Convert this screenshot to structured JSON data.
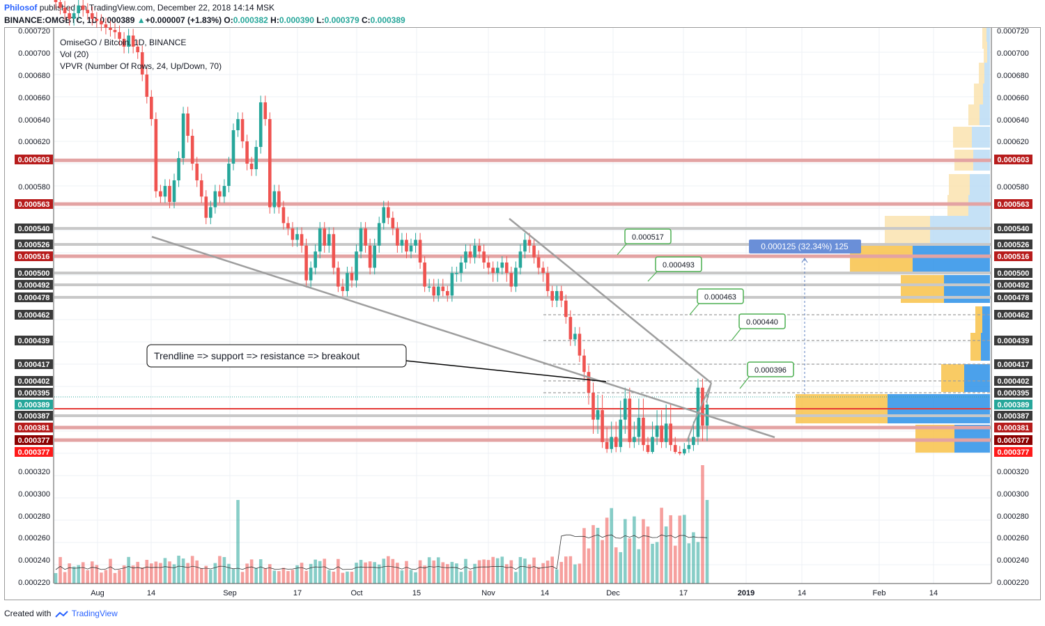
{
  "header": {
    "author": "Philosof",
    "published_text": "published on TradingView.com, December 22, 2018 14:14 MSK",
    "symbol": "BINANCE:OMGBTC, 1D",
    "last_price": "0.000389",
    "change": "+0.000007 (+1.83%)",
    "o_label": "O:",
    "o_value": "0.000382",
    "h_label": "H:",
    "h_value": "0.000390",
    "l_label": "L:",
    "l_value": "0.000379",
    "c_label": "C:",
    "c_value": "0.000389"
  },
  "legend": {
    "title": "OmiseGO / Bitcoin, 1D, BINANCE",
    "volume": "Vol (20)",
    "vpvr": "VPVR (Number Of Rows, 24, Up/Down, 70)"
  },
  "footer": {
    "created_with": "Created with",
    "brand": "TradingView"
  },
  "colors": {
    "up": "#26a69a",
    "down": "#ef5350",
    "vp_up": "#2196f3",
    "vp_down": "#ffb300",
    "label_bg": "#333333",
    "line_red": "#d32f2f",
    "annotation": "#4caf50",
    "measure": "#5b7fc2"
  },
  "chart_data": {
    "type": "candlestick",
    "title": "OmiseGO / Bitcoin, 1D, BINANCE",
    "x_ticks": [
      "Aug",
      "14",
      "Sep",
      "17",
      "Oct",
      "15",
      "Nov",
      "14",
      "Dec",
      "17",
      "2019",
      "14",
      "Feb",
      "14"
    ],
    "y_ticks": [
      "0.000720",
      "0.000700",
      "0.000680",
      "0.000660",
      "0.000640",
      "0.000620",
      "0.000580",
      "0.000320",
      "0.000300",
      "0.000280",
      "0.000260",
      "0.000240",
      "0.000220"
    ],
    "ylim": [
      0.00022,
      0.000725
    ],
    "candles_approx": {
      "start": "2018-07-27",
      "end": "2018-12-22",
      "close": [
        0.000745,
        0.00074,
        0.000735,
        0.00073,
        0.000735,
        0.000742,
        0.000738,
        0.000735,
        0.00073,
        0.000728,
        0.000725,
        0.000722,
        0.00072,
        0.000718,
        0.000712,
        0.000705,
        0.000715,
        0.000705,
        0.0007,
        0.00068,
        0.00066,
        0.00064,
        0.000575,
        0.00057,
        0.00058,
        0.000565,
        0.000585,
        0.000605,
        0.000645,
        0.000625,
        0.0006,
        0.000585,
        0.00057,
        0.00055,
        0.00056,
        0.000575,
        0.00057,
        0.00058,
        0.0006,
        0.00063,
        0.00064,
        0.00062,
        0.0006,
        0.000595,
        0.000615,
        0.000655,
        0.00064,
        0.00056,
        0.000575,
        0.00056,
        0.000545,
        0.00054,
        0.00053,
        0.000535,
        0.000525,
        0.000495,
        0.000505,
        0.00052,
        0.00054,
        0.000525,
        0.000535,
        0.000505,
        0.00049,
        0.000485,
        0.0005,
        0.000495,
        0.00052,
        0.00054,
        0.000525,
        0.000505,
        0.000525,
        0.000545,
        0.00056,
        0.00055,
        0.00054,
        0.000525,
        0.00053,
        0.00052,
        0.000525,
        0.00053,
        0.00051,
        0.00049,
        0.00049,
        0.00048,
        0.00049,
        0.000485,
        0.00048,
        0.0005,
        0.0005,
        0.00051,
        0.00052,
        0.000515,
        0.000525,
        0.00052,
        0.00051,
        0.000505,
        0.0005,
        0.000505,
        0.00051,
        0.0005,
        0.00049,
        0.000505,
        0.00052,
        0.00053,
        0.000525,
        0.000515,
        0.000505,
        0.0005,
        0.000485,
        0.000475,
        0.000485,
        0.000475,
        0.00046,
        0.00044,
        0.000445,
        0.000425,
        0.00041,
        0.000395,
        0.000385,
        0.000388,
        0.000375,
        0.000368,
        0.000378,
        0.00037,
        0.000385,
        0.000392,
        0.000375,
        0.000378,
        0.000386,
        0.000372,
        0.000365,
        0.000378,
        0.000382,
        0.000375,
        0.000383,
        0.000372,
        0.000365,
        0.00036,
        0.000368,
        0.000372,
        0.000378,
        0.000398,
        0.000382,
        0.000389
      ]
    },
    "horizontal_levels": [
      {
        "value": "0.000603",
        "style": "red"
      },
      {
        "value": "0.000563",
        "style": "red"
      },
      {
        "value": "0.000540",
        "style": "grey"
      },
      {
        "value": "0.000526",
        "style": "grey"
      },
      {
        "value": "0.000516",
        "style": "red"
      },
      {
        "value": "0.000500",
        "style": "grey"
      },
      {
        "value": "0.000492",
        "style": "grey"
      },
      {
        "value": "0.000478",
        "style": "grey"
      },
      {
        "value": "0.000462",
        "style": "dashed"
      },
      {
        "value": "0.000439",
        "style": "dashed"
      },
      {
        "value": "0.000417",
        "style": "dashed"
      },
      {
        "value": "0.000402",
        "style": "dashed"
      },
      {
        "value": "0.000395",
        "style": "dashed"
      },
      {
        "value": "0.000389",
        "style": "current"
      },
      {
        "value": "0.000387",
        "style": "grey"
      },
      {
        "value": "0.000381",
        "style": "red"
      },
      {
        "value": "0.000377",
        "style": "darkred"
      },
      {
        "value": "0.000377",
        "style": "brightred"
      }
    ],
    "annotations": [
      "0.000517",
      "0.000493",
      "0.000463",
      "0.000440",
      "0.000396"
    ],
    "measure_label": "0.000125 (32.34%) 125",
    "callout": "Trendline => support => resistance => breakout",
    "volume_axis": [
      "0.000320",
      "0.000300",
      "0.000280",
      "0.000260",
      "0.000240",
      "0.000220"
    ]
  }
}
